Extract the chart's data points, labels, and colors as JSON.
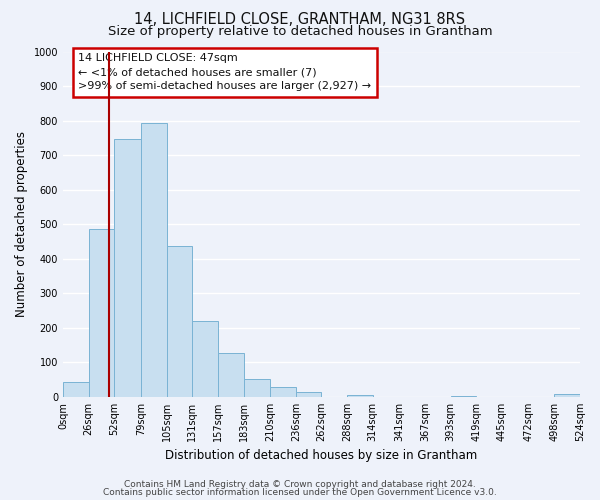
{
  "title": "14, LICHFIELD CLOSE, GRANTHAM, NG31 8RS",
  "subtitle": "Size of property relative to detached houses in Grantham",
  "xlabel": "Distribution of detached houses by size in Grantham",
  "ylabel": "Number of detached properties",
  "bin_edges": [
    0,
    26,
    52,
    79,
    105,
    131,
    157,
    183,
    210,
    236,
    262,
    288,
    314,
    341,
    367,
    393,
    419,
    445,
    472,
    498,
    524
  ],
  "bin_labels": [
    "0sqm",
    "26sqm",
    "52sqm",
    "79sqm",
    "105sqm",
    "131sqm",
    "157sqm",
    "183sqm",
    "210sqm",
    "236sqm",
    "262sqm",
    "288sqm",
    "314sqm",
    "341sqm",
    "367sqm",
    "393sqm",
    "419sqm",
    "445sqm",
    "472sqm",
    "498sqm",
    "524sqm"
  ],
  "bar_heights": [
    43,
    487,
    748,
    792,
    437,
    220,
    126,
    52,
    28,
    13,
    0,
    6,
    0,
    0,
    0,
    4,
    0,
    0,
    0,
    8
  ],
  "bar_color": "#c8dff0",
  "bar_edge_color": "#7ab3d4",
  "property_line_x": 47,
  "property_line_color": "#aa0000",
  "ylim": [
    0,
    1000
  ],
  "yticks": [
    0,
    100,
    200,
    300,
    400,
    500,
    600,
    700,
    800,
    900,
    1000
  ],
  "annotation_line1": "14 LICHFIELD CLOSE: 47sqm",
  "annotation_line2": "← <1% of detached houses are smaller (7)",
  "annotation_line3": ">99% of semi-detached houses are larger (2,927) →",
  "footnote1": "Contains HM Land Registry data © Crown copyright and database right 2024.",
  "footnote2": "Contains public sector information licensed under the Open Government Licence v3.0.",
  "bg_color": "#eef2fa",
  "plot_bg_color": "#eef2fa",
  "grid_color": "#ffffff",
  "title_fontsize": 10.5,
  "subtitle_fontsize": 9.5,
  "label_fontsize": 8.5,
  "tick_fontsize": 7,
  "annot_fontsize": 8,
  "footnote_fontsize": 6.5
}
